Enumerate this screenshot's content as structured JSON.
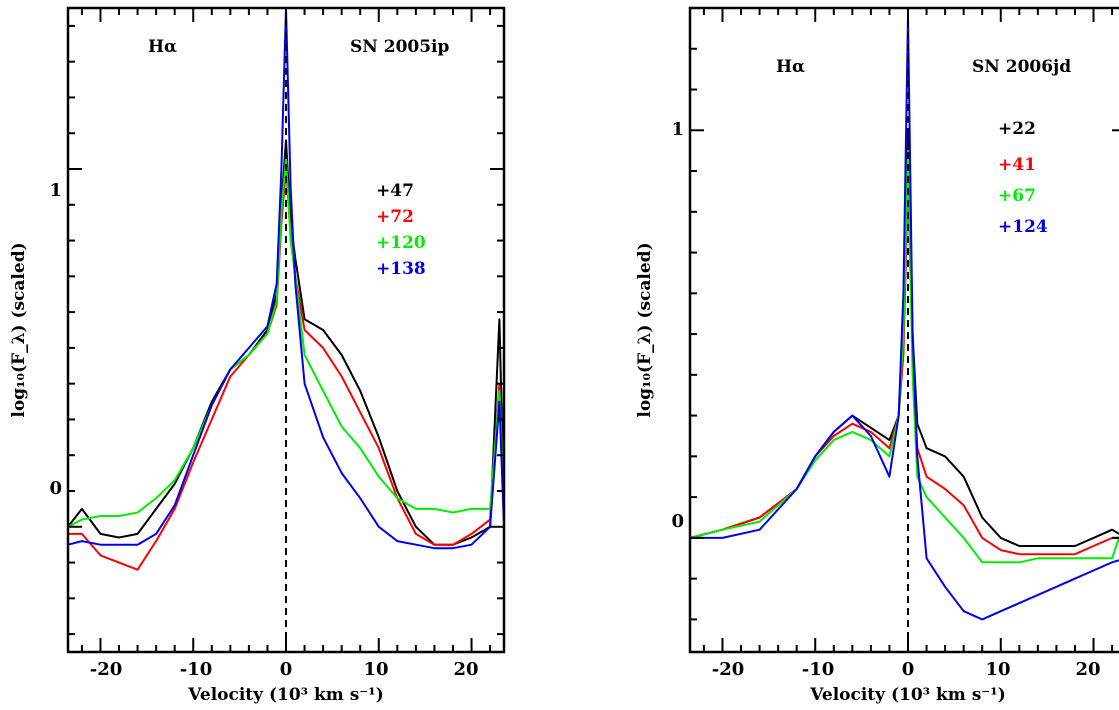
{
  "chart_data": [
    {
      "type": "line",
      "title": "",
      "annotations": [
        "Hα",
        "SN 2005ip"
      ],
      "xlabel": "Velocity (10³ km s⁻¹)",
      "ylabel": "log₁₀(F_λ) (scaled)",
      "xlim": [
        -23.5,
        23.5
      ],
      "ylim": [
        -0.35,
        1.45
      ],
      "x_ticks": [
        "-20",
        "-10",
        "0",
        "10",
        "20"
      ],
      "y_ticks": [
        "0",
        "1"
      ],
      "legend_position": "right, below top",
      "series": [
        {
          "name": "+47",
          "color": "#000000",
          "x": [
            -23.5,
            -22,
            -20,
            -18,
            -16,
            -14,
            -12,
            -10,
            -8,
            -6,
            -4,
            -2,
            -1,
            -0.5,
            0,
            0.5,
            1,
            2,
            4,
            6,
            8,
            10,
            12,
            14,
            16,
            18,
            20,
            22,
            23,
            23.5
          ],
          "y": [
            0.0,
            0.05,
            -0.02,
            -0.03,
            -0.02,
            0.05,
            0.12,
            0.22,
            0.35,
            0.44,
            0.48,
            0.55,
            0.65,
            0.9,
            1.08,
            0.85,
            0.75,
            0.58,
            0.55,
            0.48,
            0.38,
            0.25,
            0.1,
            0.0,
            -0.05,
            -0.05,
            -0.03,
            0.0,
            0.58,
            0.05
          ]
        },
        {
          "name": "+72",
          "color": "#ff0000",
          "x": [
            -23.5,
            -22,
            -20,
            -18,
            -16,
            -14,
            -12,
            -10,
            -8,
            -6,
            -4,
            -2,
            -1,
            -0.5,
            0,
            0.5,
            1,
            2,
            4,
            6,
            8,
            10,
            12,
            14,
            16,
            18,
            20,
            22,
            23,
            23.5
          ],
          "y": [
            -0.02,
            -0.02,
            -0.08,
            -0.1,
            -0.12,
            -0.04,
            0.05,
            0.18,
            0.3,
            0.42,
            0.48,
            0.54,
            0.62,
            0.85,
            1.0,
            0.82,
            0.7,
            0.55,
            0.5,
            0.42,
            0.32,
            0.22,
            0.08,
            -0.02,
            -0.05,
            -0.05,
            -0.02,
            0.02,
            0.4,
            0.05
          ]
        },
        {
          "name": "+120",
          "color": "#00ee00",
          "x": [
            -23.5,
            -22,
            -20,
            -18,
            -16,
            -14,
            -12,
            -10,
            -8,
            -6,
            -4,
            -2,
            -1,
            -0.5,
            0,
            0.5,
            1,
            2,
            4,
            6,
            8,
            10,
            12,
            14,
            16,
            18,
            20,
            22,
            23,
            23.5
          ],
          "y": [
            0.0,
            0.02,
            0.03,
            0.03,
            0.04,
            0.08,
            0.13,
            0.22,
            0.34,
            0.44,
            0.48,
            0.54,
            0.63,
            0.88,
            1.03,
            0.8,
            0.7,
            0.48,
            0.38,
            0.28,
            0.22,
            0.14,
            0.08,
            0.05,
            0.05,
            0.04,
            0.05,
            0.05,
            0.38,
            0.05
          ]
        },
        {
          "name": "+138",
          "color": "#0000ee",
          "x": [
            -23.5,
            -22,
            -20,
            -18,
            -16,
            -14,
            -12,
            -10,
            -8,
            -6,
            -4,
            -2,
            -1,
            -0.5,
            0,
            0.5,
            1,
            2,
            4,
            6,
            8,
            10,
            12,
            14,
            16,
            18,
            20,
            22,
            23,
            23.5
          ],
          "y": [
            -0.05,
            -0.04,
            -0.05,
            -0.05,
            -0.05,
            -0.02,
            0.06,
            0.2,
            0.34,
            0.44,
            0.5,
            0.56,
            0.68,
            1.0,
            1.45,
            0.95,
            0.68,
            0.4,
            0.25,
            0.15,
            0.08,
            0.0,
            -0.04,
            -0.05,
            -0.06,
            -0.06,
            -0.05,
            0.0,
            0.35,
            0.0
          ]
        }
      ]
    },
    {
      "type": "line",
      "title": "",
      "annotations": [
        "Hα",
        "SN 2006jd"
      ],
      "xlabel": "Velocity (10³ km s⁻¹)",
      "ylabel": "log₁₀(F_λ) (scaled)",
      "xlim": [
        -23.5,
        23.5
      ],
      "ylim": [
        -0.28,
        1.3
      ],
      "x_ticks": [
        "-20",
        "-10",
        "0",
        "10",
        "20"
      ],
      "y_ticks": [
        "0",
        "1"
      ],
      "legend_position": "right, below top",
      "series": [
        {
          "name": "+22",
          "color": "#000000",
          "x": [
            -23.5,
            -20,
            -16,
            -12,
            -10,
            -8,
            -6,
            -4,
            -2,
            -1,
            -0.5,
            0,
            0.5,
            1,
            2,
            4,
            6,
            8,
            10,
            12,
            14,
            16,
            18,
            20,
            22,
            23.5
          ],
          "y": [
            0.0,
            0.02,
            0.05,
            0.12,
            0.2,
            0.26,
            0.3,
            0.27,
            0.24,
            0.3,
            0.5,
            1.0,
            0.5,
            0.28,
            0.22,
            0.2,
            0.15,
            0.05,
            0.0,
            -0.02,
            -0.02,
            -0.02,
            -0.02,
            0.0,
            0.02,
            0.0
          ]
        },
        {
          "name": "+41",
          "color": "#ff0000",
          "x": [
            -23.5,
            -20,
            -16,
            -12,
            -10,
            -8,
            -6,
            -4,
            -2,
            -1,
            -0.5,
            0,
            0.5,
            1,
            2,
            4,
            6,
            8,
            10,
            12,
            14,
            16,
            18,
            20,
            22,
            23.5
          ],
          "y": [
            0.0,
            0.02,
            0.05,
            0.12,
            0.2,
            0.25,
            0.28,
            0.26,
            0.22,
            0.3,
            0.45,
            0.88,
            0.45,
            0.22,
            0.15,
            0.12,
            0.08,
            0.0,
            -0.03,
            -0.04,
            -0.04,
            -0.04,
            -0.04,
            -0.02,
            0.0,
            0.0
          ]
        },
        {
          "name": "+67",
          "color": "#00ee00",
          "x": [
            -23.5,
            -20,
            -16,
            -12,
            -10,
            -8,
            -6,
            -4,
            -2,
            -1,
            -0.5,
            0,
            0.5,
            1,
            2,
            4,
            6,
            8,
            10,
            12,
            14,
            16,
            18,
            20,
            22,
            23.5
          ],
          "y": [
            0.0,
            0.02,
            0.04,
            0.12,
            0.19,
            0.24,
            0.26,
            0.24,
            0.2,
            0.3,
            0.5,
            0.95,
            0.4,
            0.15,
            0.1,
            0.05,
            0.0,
            -0.06,
            -0.06,
            -0.06,
            -0.05,
            -0.05,
            -0.05,
            -0.05,
            -0.05,
            0.05
          ]
        },
        {
          "name": "+124",
          "color": "#0000ee",
          "x": [
            -23.5,
            -20,
            -16,
            -12,
            -10,
            -8,
            -6,
            -4,
            -2,
            -1,
            -0.5,
            0,
            0.5,
            1,
            2,
            4,
            6,
            8,
            10,
            12,
            14,
            16,
            18,
            20,
            22,
            23.5
          ],
          "y": [
            0.0,
            0.0,
            0.02,
            0.12,
            0.2,
            0.26,
            0.3,
            0.25,
            0.15,
            0.3,
            0.6,
            1.28,
            0.5,
            0.2,
            -0.05,
            -0.12,
            -0.18,
            -0.2,
            -0.18,
            -0.16,
            -0.14,
            -0.12,
            -0.1,
            -0.08,
            -0.06,
            -0.05
          ]
        }
      ]
    }
  ]
}
